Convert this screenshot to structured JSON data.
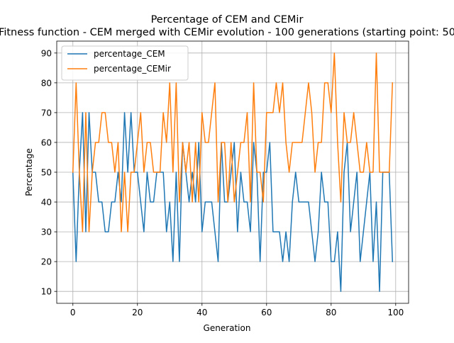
{
  "chart_data": {
    "type": "line",
    "title": "Percentage of CEM and CEMir",
    "subtitle": "Fitness function - CEM merged with CEMir evolution - 100 generations (starting point: 50",
    "xlabel": "Generation",
    "ylabel": "Percentage",
    "xlim": [
      -5,
      104
    ],
    "ylim": [
      6,
      94
    ],
    "xticks": [
      0,
      20,
      40,
      60,
      80,
      100
    ],
    "yticks": [
      10,
      20,
      30,
      40,
      50,
      60,
      70,
      80,
      90
    ],
    "grid": true,
    "legend_position": "upper-left",
    "series": [
      {
        "name": "percentage_CEM",
        "color": "#1f77b4",
        "x": [
          0,
          1,
          2,
          3,
          4,
          5,
          6,
          7,
          8,
          9,
          10,
          11,
          12,
          13,
          14,
          15,
          16,
          17,
          18,
          19,
          20,
          21,
          22,
          23,
          24,
          25,
          26,
          27,
          28,
          29,
          30,
          31,
          32,
          33,
          34,
          35,
          36,
          37,
          38,
          39,
          40,
          41,
          42,
          43,
          44,
          45,
          46,
          47,
          48,
          49,
          50,
          51,
          52,
          53,
          54,
          55,
          56,
          57,
          58,
          59,
          60,
          61,
          62,
          63,
          64,
          65,
          66,
          67,
          68,
          69,
          70,
          71,
          72,
          73,
          74,
          75,
          76,
          77,
          78,
          79,
          80,
          81,
          82,
          83,
          84,
          85,
          86,
          87,
          88,
          89,
          90,
          91,
          92,
          93,
          94,
          95,
          96,
          97,
          98,
          99
        ],
        "values": [
          50,
          20,
          50,
          70,
          30,
          70,
          50,
          50,
          40,
          40,
          30,
          30,
          40,
          40,
          50,
          40,
          70,
          50,
          70,
          50,
          50,
          40,
          30,
          50,
          40,
          40,
          50,
          50,
          50,
          30,
          40,
          20,
          50,
          20,
          60,
          50,
          40,
          50,
          40,
          60,
          30,
          40,
          40,
          40,
          30,
          20,
          60,
          40,
          40,
          50,
          60,
          30,
          50,
          40,
          40,
          30,
          60,
          50,
          20,
          50,
          50,
          60,
          30,
          30,
          30,
          20,
          30,
          20,
          40,
          50,
          40,
          40,
          40,
          40,
          30,
          20,
          30,
          50,
          40,
          40,
          20,
          20,
          30,
          10,
          50,
          60,
          30,
          40,
          50,
          20,
          30,
          40,
          50,
          20,
          40,
          10,
          50,
          50,
          50,
          20
        ]
      },
      {
        "name": "percentage_CEMir",
        "color": "#ff7f0e",
        "x": [
          0,
          1,
          2,
          3,
          4,
          5,
          6,
          7,
          8,
          9,
          10,
          11,
          12,
          13,
          14,
          15,
          16,
          17,
          18,
          19,
          20,
          21,
          22,
          23,
          24,
          25,
          26,
          27,
          28,
          29,
          30,
          31,
          32,
          33,
          34,
          35,
          36,
          37,
          38,
          39,
          40,
          41,
          42,
          43,
          44,
          45,
          46,
          47,
          48,
          49,
          50,
          51,
          52,
          53,
          54,
          55,
          56,
          57,
          58,
          59,
          60,
          61,
          62,
          63,
          64,
          65,
          66,
          67,
          68,
          69,
          70,
          71,
          72,
          73,
          74,
          75,
          76,
          77,
          78,
          79,
          80,
          81,
          82,
          83,
          84,
          85,
          86,
          87,
          88,
          89,
          90,
          91,
          92,
          93,
          94,
          95,
          96,
          97,
          98,
          99
        ],
        "values": [
          50,
          80,
          50,
          30,
          70,
          30,
          50,
          60,
          60,
          70,
          70,
          60,
          60,
          50,
          60,
          30,
          50,
          30,
          50,
          50,
          60,
          70,
          50,
          60,
          60,
          50,
          50,
          50,
          70,
          60,
          80,
          50,
          80,
          40,
          60,
          50,
          60,
          40,
          60,
          40,
          70,
          60,
          60,
          70,
          80,
          40,
          60,
          60,
          40,
          60,
          40,
          50,
          60,
          60,
          70,
          40,
          80,
          50,
          50,
          40,
          70,
          70,
          70,
          80,
          70,
          80,
          60,
          50,
          60,
          60,
          60,
          60,
          70,
          80,
          70,
          50,
          60,
          60,
          80,
          80,
          70,
          90,
          60,
          40,
          70,
          60,
          60,
          70,
          60,
          50,
          50,
          60,
          50,
          50,
          90,
          50,
          50,
          50,
          50,
          80
        ]
      }
    ]
  }
}
